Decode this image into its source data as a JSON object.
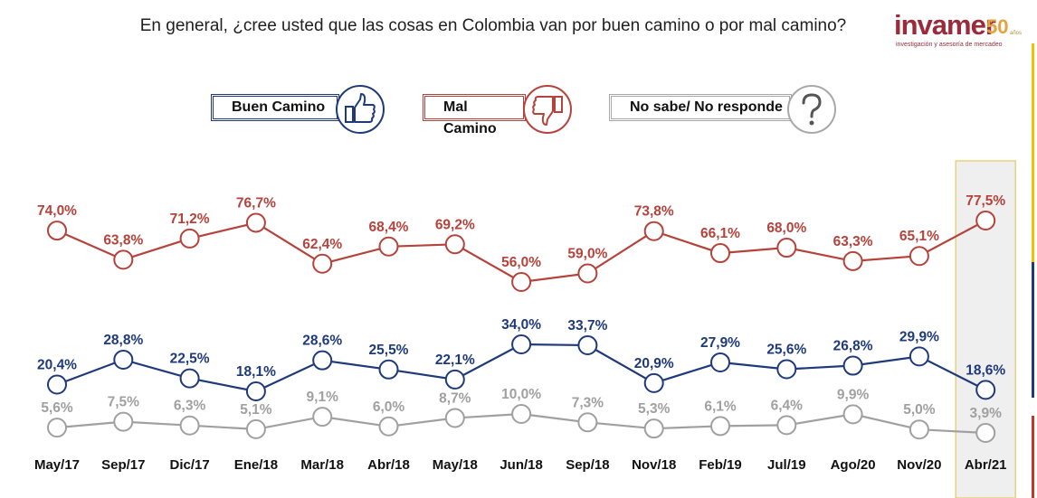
{
  "title": "En general, ¿cree usted que las cosas en Colombia van por buen camino o por mal camino?",
  "logo": {
    "word": "invamer",
    "fifty": "50",
    "anios": "años",
    "tagline": "investigación y asesoría de mercadeo"
  },
  "legend": {
    "buen": "Buen Camino",
    "mal": "Mal Camino",
    "nosabe": "No sabe/ No responde"
  },
  "icons": {
    "buen": "thumbs-up-icon",
    "mal": "thumbs-down-icon",
    "nosabe": "question-mark-icon"
  },
  "colors": {
    "buen": "#1f3a7a",
    "mal": "#b5433b",
    "nosabe": "#a0a0a0",
    "highlight_fill": "#efefef",
    "highlight_border": "#e8d27a",
    "side_blue": "#1f3a7a",
    "side_red": "#c0392b",
    "side_yellow": "#f2c200"
  },
  "chart_data": {
    "type": "line",
    "categories": [
      "May/17",
      "Sep/17",
      "Dic/17",
      "Ene/18",
      "Mar/18",
      "Abr/18",
      "May/18",
      "Jun/18",
      "Sep/18",
      "Nov/18",
      "Feb/19",
      "Jul/19",
      "Ago/20",
      "Nov/20",
      "Abr/21"
    ],
    "series": [
      {
        "name": "Mal Camino",
        "values": [
          74.0,
          63.8,
          71.2,
          76.7,
          62.4,
          68.4,
          69.2,
          56.0,
          59.0,
          73.8,
          66.1,
          68.0,
          63.3,
          65.1,
          77.5
        ],
        "labels": [
          "74,0%",
          "63,8%",
          "71,2%",
          "76,7%",
          "62,4%",
          "68,4%",
          "69,2%",
          "56,0%",
          "59,0%",
          "73,8%",
          "66,1%",
          "68,0%",
          "63,3%",
          "65,1%",
          "77,5%"
        ]
      },
      {
        "name": "Buen Camino",
        "values": [
          20.4,
          28.8,
          22.5,
          18.1,
          28.6,
          25.5,
          22.1,
          34.0,
          33.7,
          20.9,
          27.9,
          25.6,
          26.8,
          29.9,
          18.6
        ],
        "labels": [
          "20,4%",
          "28,8%",
          "22,5%",
          "18,1%",
          "28,6%",
          "25,5%",
          "22,1%",
          "34,0%",
          "33,7%",
          "20,9%",
          "27,9%",
          "25,6%",
          "26,8%",
          "29,9%",
          "18,6%"
        ]
      },
      {
        "name": "No sabe/ No responde",
        "values": [
          5.6,
          7.5,
          6.3,
          5.1,
          9.1,
          6.0,
          8.7,
          10.0,
          7.3,
          5.3,
          6.1,
          6.4,
          9.9,
          5.0,
          3.9
        ],
        "labels": [
          "5,6%",
          "7,5%",
          "6,3%",
          "5,1%",
          "9,1%",
          "6,0%",
          "8,7%",
          "10,0%",
          "7,3%",
          "5,3%",
          "6,1%",
          "6,4%",
          "9,9%",
          "5,0%",
          "3,9%"
        ]
      }
    ],
    "highlight_category": "Abr/21",
    "grid": false,
    "legend_position": "top"
  }
}
